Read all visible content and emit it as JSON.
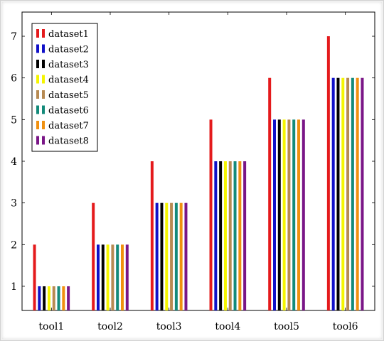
{
  "chart_data": {
    "type": "bar",
    "title": "",
    "xlabel": "",
    "ylabel": "",
    "categories": [
      "tool1",
      "tool2",
      "tool3",
      "tool4",
      "tool5",
      "tool6"
    ],
    "ylim": [
      0.42,
      7.58
    ],
    "yticks": [
      1,
      2,
      3,
      4,
      5,
      6,
      7
    ],
    "grid": false,
    "legend_position": "top-left",
    "series": [
      {
        "name": "dataset1",
        "color": "#e41a1c",
        "values": [
          2,
          3,
          4,
          5,
          6,
          7
        ]
      },
      {
        "name": "dataset2",
        "color": "#1010c8",
        "values": [
          1,
          2,
          3,
          4,
          5,
          6
        ]
      },
      {
        "name": "dataset3",
        "color": "#000000",
        "values": [
          1,
          2,
          3,
          4,
          5,
          6
        ]
      },
      {
        "name": "dataset4",
        "color": "#f5f500",
        "values": [
          1,
          2,
          3,
          4,
          5,
          6
        ]
      },
      {
        "name": "dataset5",
        "color": "#b78a52",
        "values": [
          1,
          2,
          3,
          4,
          5,
          6
        ]
      },
      {
        "name": "dataset6",
        "color": "#138a7a",
        "values": [
          1,
          2,
          3,
          4,
          5,
          6
        ]
      },
      {
        "name": "dataset7",
        "color": "#f0900f",
        "values": [
          1,
          2,
          3,
          4,
          5,
          6
        ]
      },
      {
        "name": "dataset8",
        "color": "#7a1687",
        "values": [
          1,
          2,
          3,
          4,
          5,
          6
        ]
      }
    ]
  }
}
